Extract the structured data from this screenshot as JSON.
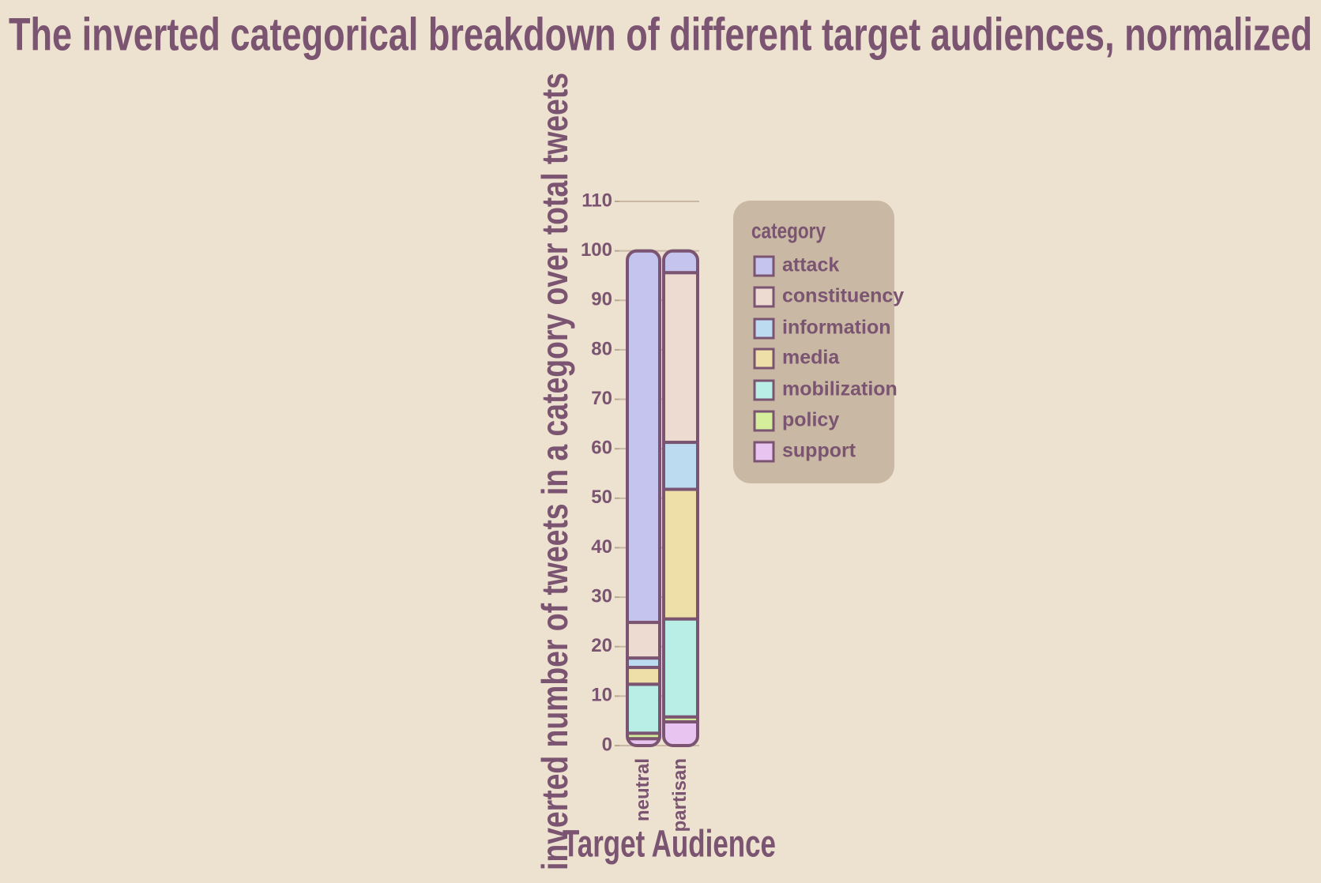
{
  "chart_data": {
    "type": "stacked_bar",
    "title": "The inverted categorical breakdown of different target audiences, normalized",
    "x_label": "Target Audience",
    "y_label": "inverted number of tweets in a category over total tweets",
    "legend_title": "category",
    "legend_position": "right",
    "categories": [
      "neutral",
      "partisan"
    ],
    "series": [
      {
        "name": "support",
        "color": "#e8c4f0",
        "values": [
          1.4,
          4.8
        ]
      },
      {
        "name": "policy",
        "color": "#d4ee9c",
        "values": [
          1.1,
          1.0
        ]
      },
      {
        "name": "mobilization",
        "color": "#b8eee6",
        "values": [
          9.9,
          19.8
        ]
      },
      {
        "name": "media",
        "color": "#eedfa8",
        "values": [
          3.4,
          26.2
        ]
      },
      {
        "name": "information",
        "color": "#bcdaf0",
        "values": [
          1.9,
          9.5
        ]
      },
      {
        "name": "constituency",
        "color": "#eddad0",
        "values": [
          7.2,
          34.3
        ]
      },
      {
        "name": "attack",
        "color": "#c4c4ee",
        "values": [
          75.1,
          4.4
        ]
      }
    ],
    "ylim": [
      0,
      110
    ],
    "yticks": [
      0,
      10,
      20,
      30,
      40,
      50,
      60,
      70,
      80,
      90,
      100,
      110
    ],
    "grid": true
  }
}
